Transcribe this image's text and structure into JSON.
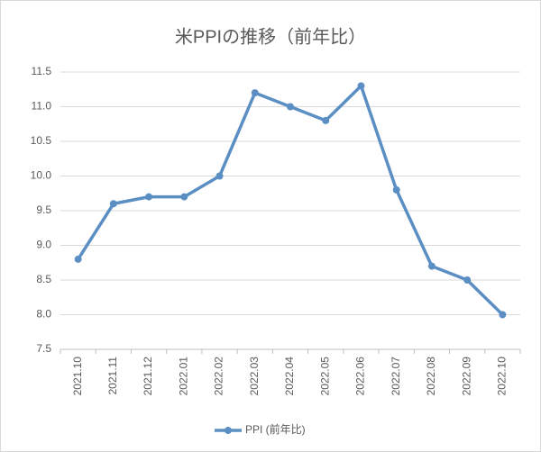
{
  "chart_data": {
    "type": "line",
    "title": "米PPIの推移（前年比）",
    "categories": [
      "2021.10",
      "2021.11",
      "2021.12",
      "2022.01",
      "2022.02",
      "2022.03",
      "2022.04",
      "2022.05",
      "2022.06",
      "2022.07",
      "2022.08",
      "2022.09",
      "2022.10"
    ],
    "series": [
      {
        "name": "PPI (前年比)",
        "color": "#5b8fc4",
        "values": [
          8.8,
          9.6,
          9.7,
          9.7,
          10.0,
          11.2,
          11.0,
          10.8,
          11.3,
          9.8,
          8.7,
          8.5,
          8.0
        ]
      }
    ],
    "ylim": [
      7.5,
      11.5
    ],
    "yticks": [
      7.5,
      {
        "value": 8,
        "label": "8.0"
      },
      8.5,
      {
        "value": 9,
        "label": "9.0"
      },
      9.5,
      {
        "value": 10,
        "label": "10.0"
      },
      10.5,
      {
        "value": 11,
        "label": "11.0"
      },
      11.5
    ],
    "grid": true,
    "legend": "bottom"
  }
}
